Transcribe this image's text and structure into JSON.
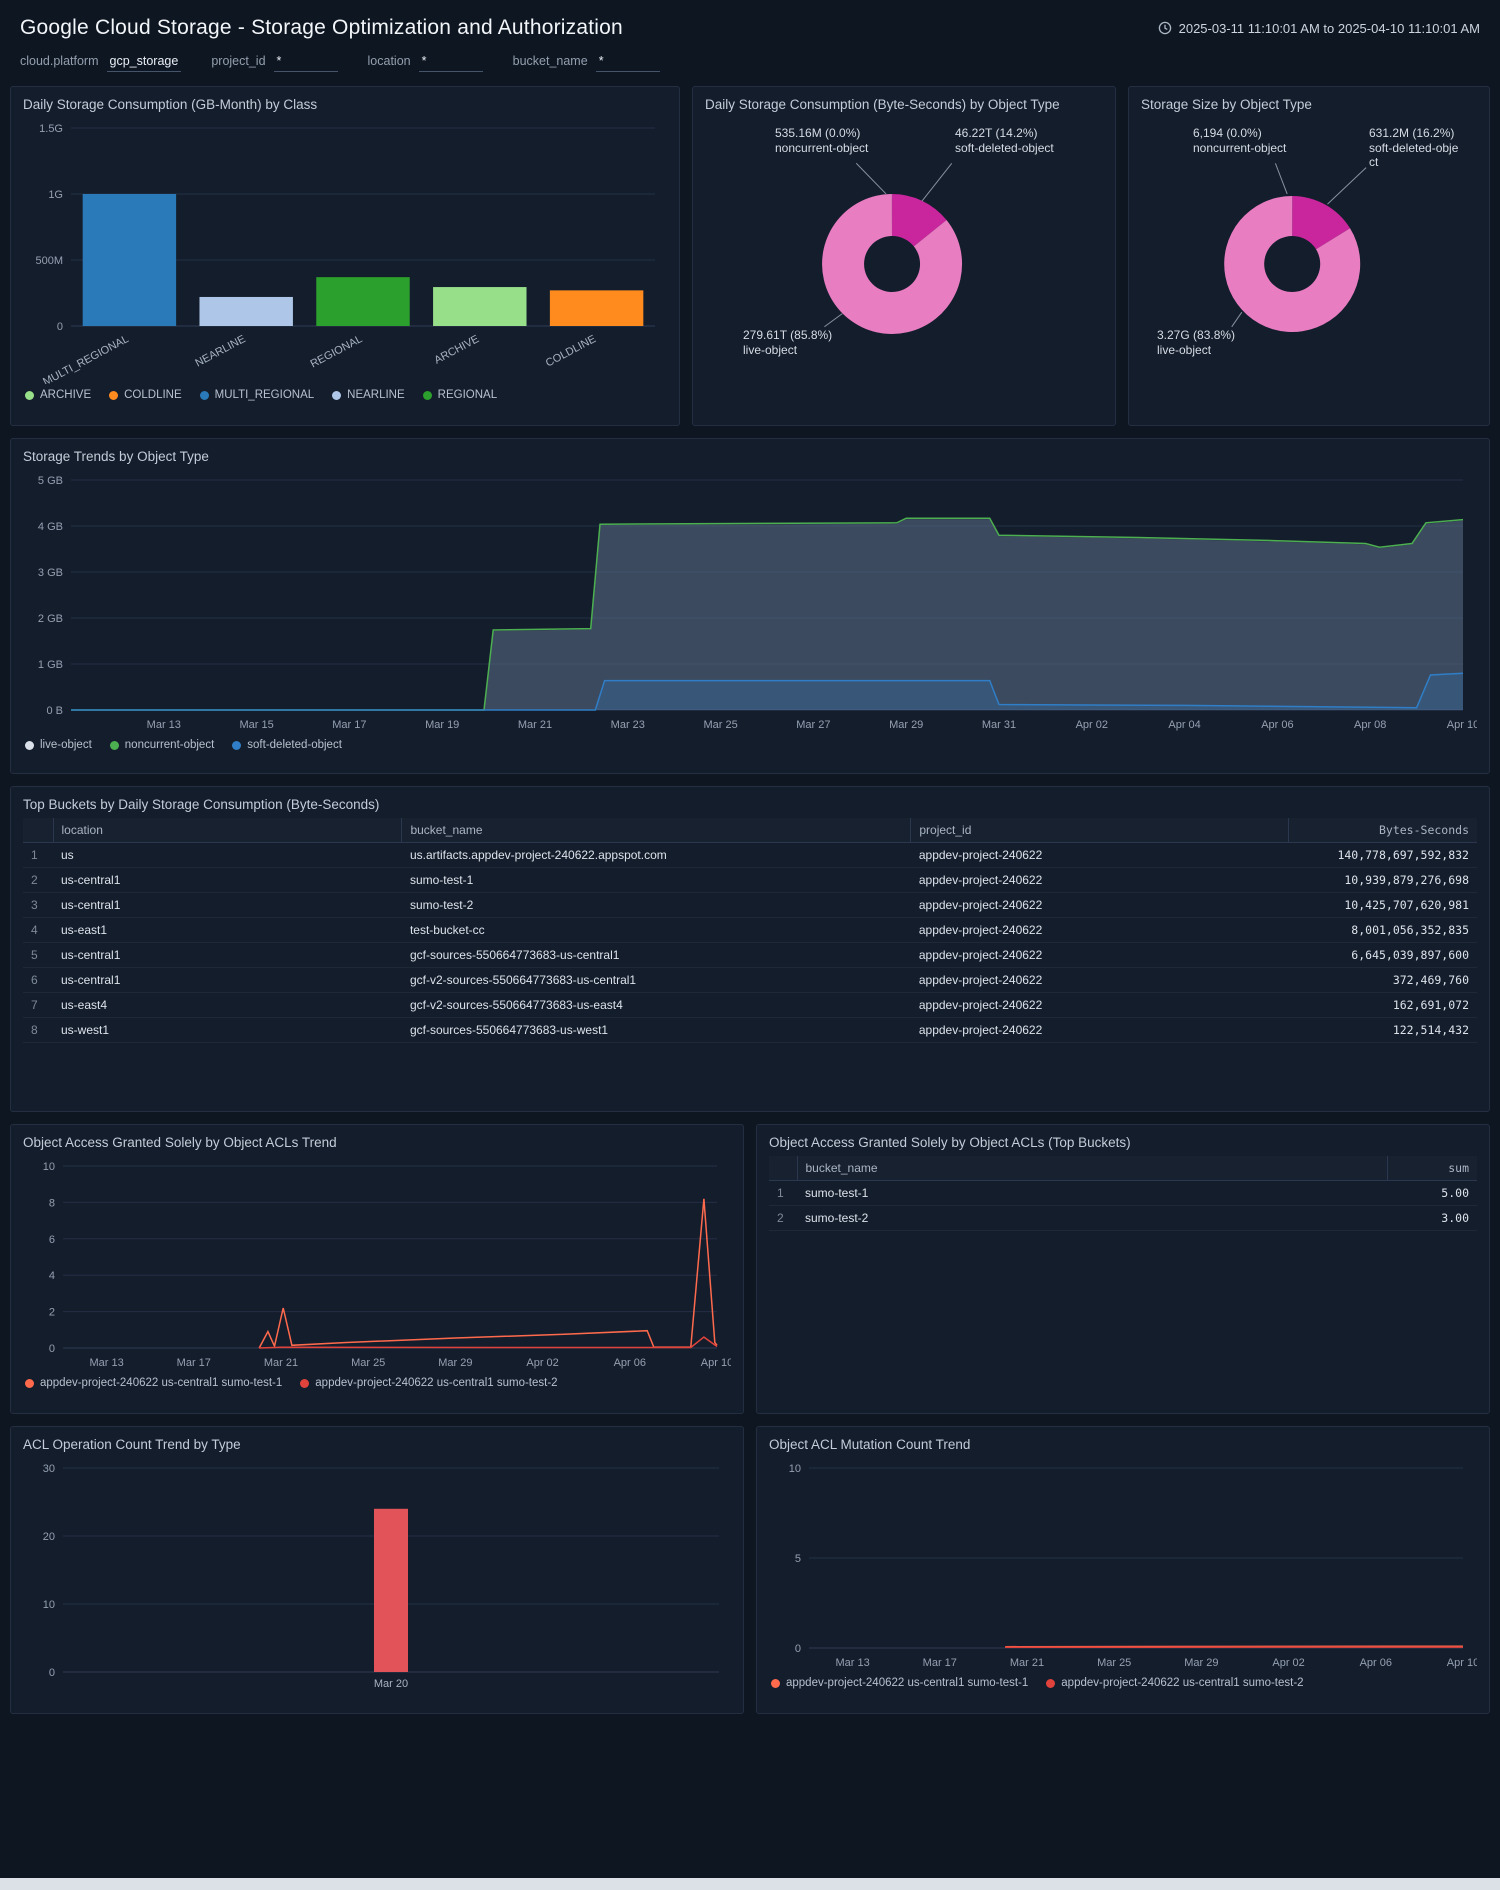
{
  "header": {
    "title": "Google Cloud Storage - Storage Optimization and Authorization",
    "time_range": "2025-03-11 11:10:01 AM to 2025-04-10 11:10:01 AM"
  },
  "filters": [
    {
      "label": "cloud.platform",
      "value": "gcp_storage"
    },
    {
      "label": "project_id",
      "value": "*"
    },
    {
      "label": "location",
      "value": "*"
    },
    {
      "label": "bucket_name",
      "value": "*"
    }
  ],
  "panels": {
    "class_bar": {
      "title": "Daily Storage Consumption (GB-Month) by Class"
    },
    "bytes_donut": {
      "title": "Daily Storage Consumption (Byte-Seconds) by Object Type"
    },
    "size_donut": {
      "title": "Storage Size by Object Type"
    },
    "trends": {
      "title": "Storage Trends by Object Type"
    },
    "top_buckets": {
      "title": "Top Buckets by Daily Storage Consumption (Byte-Seconds)"
    },
    "acl_trend": {
      "title": "Object Access Granted Solely by Object ACLs Trend"
    },
    "acl_table": {
      "title": "Object Access Granted Solely by Object ACLs (Top Buckets)"
    },
    "acl_bar": {
      "title": "ACL Operation Count Trend by Type"
    },
    "mutation_trend": {
      "title": "Object ACL Mutation Count Trend"
    }
  },
  "tables": {
    "top_buckets": {
      "columns": [
        "location",
        "bucket_name",
        "project_id",
        "Bytes-Seconds"
      ],
      "rows": [
        [
          "us",
          "us.artifacts.appdev-project-240622.appspot.com",
          "appdev-project-240622",
          "140,778,697,592,832"
        ],
        [
          "us-central1",
          "sumo-test-1",
          "appdev-project-240622",
          "10,939,879,276,698"
        ],
        [
          "us-central1",
          "sumo-test-2",
          "appdev-project-240622",
          "10,425,707,620,981"
        ],
        [
          "us-east1",
          "test-bucket-cc",
          "appdev-project-240622",
          "8,001,056,352,835"
        ],
        [
          "us-central1",
          "gcf-sources-550664773683-us-central1",
          "appdev-project-240622",
          "6,645,039,897,600"
        ],
        [
          "us-central1",
          "gcf-v2-sources-550664773683-us-central1",
          "appdev-project-240622",
          "372,469,760"
        ],
        [
          "us-east4",
          "gcf-v2-sources-550664773683-us-east4",
          "appdev-project-240622",
          "162,691,072"
        ],
        [
          "us-west1",
          "gcf-sources-550664773683-us-west1",
          "appdev-project-240622",
          "122,514,432"
        ]
      ]
    },
    "acl_top": {
      "columns": [
        "bucket_name",
        "sum"
      ],
      "rows": [
        [
          "sumo-test-1",
          "5.00"
        ],
        [
          "sumo-test-2",
          "3.00"
        ]
      ]
    }
  },
  "chart_data": [
    {
      "id": "class_bar",
      "type": "bar",
      "title": "Daily Storage Consumption (GB-Month) by Class",
      "categories": [
        "MULTI_REGIONAL",
        "NEARLINE",
        "REGIONAL",
        "ARCHIVE",
        "COLDLINE"
      ],
      "values": [
        1000000000,
        220000000,
        370000000,
        295000000,
        270000000
      ],
      "colors": [
        "#2a7ab9",
        "#aec7e8",
        "#2ca02c",
        "#98df8a",
        "#ff8b1e"
      ],
      "ylim": [
        0,
        1500000000
      ],
      "yticks": [
        {
          "v": 0,
          "l": "0"
        },
        {
          "v": 500000000,
          "l": "500M"
        },
        {
          "v": 1000000000,
          "l": "1G"
        },
        {
          "v": 1500000000,
          "l": "1.5G"
        }
      ],
      "rotate": -28,
      "ml": 48,
      "mb": 58,
      "legend": [
        {
          "label": "ARCHIVE",
          "color": "#98df8a"
        },
        {
          "label": "COLDLINE",
          "color": "#ff8b1e"
        },
        {
          "label": "MULTI_REGIONAL",
          "color": "#2a7ab9"
        },
        {
          "label": "NEARLINE",
          "color": "#aec7e8"
        },
        {
          "label": "REGIONAL",
          "color": "#2ca02c"
        }
      ]
    },
    {
      "id": "bytes_donut",
      "type": "donut",
      "title": "Daily Storage Consumption (Byte-Seconds) by Object Type",
      "cx": 0.47,
      "cy": 0.5,
      "r": 70,
      "ir": 28,
      "slices": [
        {
          "label": "soft-deleted-object",
          "value": 14.2,
          "color": "#c9259c"
        },
        {
          "label": "live-object",
          "value": 85.8,
          "color": "#e87dc2"
        },
        {
          "label": "noncurrent-object",
          "value": 0.05,
          "color": "#f0a8d8"
        }
      ],
      "labels": [
        {
          "lines": [
            "535.16M (0.0%)",
            "noncurrent-object"
          ],
          "x": 70,
          "y": 8
        },
        {
          "lines": [
            "46.22T (14.2%)",
            "soft-deleted-object"
          ],
          "x": 250,
          "y": 8
        },
        {
          "lines": [
            "279.61T (85.8%)",
            "live-object"
          ],
          "x": 38,
          "y": 210
        }
      ],
      "leaders": [
        [
          0.38,
          0.155,
          0.455,
          0.26
        ],
        [
          0.62,
          0.155,
          0.545,
          0.285
        ],
        [
          0.3,
          0.715,
          0.345,
          0.67
        ]
      ]
    },
    {
      "id": "size_donut",
      "type": "donut",
      "title": "Storage Size by Object Type",
      "cx": 0.45,
      "cy": 0.5,
      "r": 68,
      "ir": 28,
      "slices": [
        {
          "label": "soft-deleted-object",
          "value": 16.2,
          "color": "#c9259c"
        },
        {
          "label": "live-object",
          "value": 83.8,
          "color": "#e87dc2"
        },
        {
          "label": "noncurrent-object",
          "value": 0.05,
          "color": "#f0a8d8"
        }
      ],
      "labels": [
        {
          "lines": [
            "6,194 (0.0%)",
            "noncurrent-object"
          ],
          "x": 52,
          "y": 8
        },
        {
          "lines": [
            "631.2M (16.2%)",
            "soft-deleted-obje",
            "ct"
          ],
          "x": 228,
          "y": 8
        },
        {
          "lines": [
            "3.27G (83.8%)",
            "live-object"
          ],
          "x": 16,
          "y": 210
        }
      ],
      "leaders": [
        [
          0.4,
          0.155,
          0.435,
          0.26
        ],
        [
          0.67,
          0.17,
          0.555,
          0.295
        ],
        [
          0.27,
          0.715,
          0.3,
          0.665
        ]
      ]
    },
    {
      "id": "trends",
      "type": "line",
      "title": "Storage Trends by Object Type",
      "xlim": [
        0,
        30
      ],
      "ylim": [
        0,
        5
      ],
      "ml": 48,
      "yticks": [
        {
          "v": 0,
          "l": "0 B"
        },
        {
          "v": 1,
          "l": "1 GB"
        },
        {
          "v": 2,
          "l": "2 GB"
        },
        {
          "v": 3,
          "l": "3 GB"
        },
        {
          "v": 4,
          "l": "4 GB"
        },
        {
          "v": 5,
          "l": "5 GB"
        }
      ],
      "xticks": [
        {
          "v": 2,
          "l": "Mar 13"
        },
        {
          "v": 4,
          "l": "Mar 15"
        },
        {
          "v": 6,
          "l": "Mar 17"
        },
        {
          "v": 8,
          "l": "Mar 19"
        },
        {
          "v": 10,
          "l": "Mar 21"
        },
        {
          "v": 12,
          "l": "Mar 23"
        },
        {
          "v": 14,
          "l": "Mar 25"
        },
        {
          "v": 16,
          "l": "Mar 27"
        },
        {
          "v": 18,
          "l": "Mar 29"
        },
        {
          "v": 20,
          "l": "Mar 31"
        },
        {
          "v": 22,
          "l": "Apr 02"
        },
        {
          "v": 24,
          "l": "Apr 04"
        },
        {
          "v": 26,
          "l": "Apr 06"
        },
        {
          "v": 28,
          "l": "Apr 08"
        },
        {
          "v": 30,
          "l": "Apr 10"
        }
      ],
      "series": [
        {
          "name": "live-object",
          "color": "#8fa0b0",
          "width": 0,
          "fill": "#62788f",
          "fillOpacity": 0.5,
          "points": [
            [
              0,
              0
            ],
            [
              8.9,
              0
            ],
            [
              9.1,
              1.72
            ],
            [
              11.2,
              1.75
            ],
            [
              11.4,
              4.02
            ],
            [
              17.8,
              4.05
            ],
            [
              18.0,
              4.15
            ],
            [
              19.8,
              4.15
            ],
            [
              20.0,
              3.78
            ],
            [
              23,
              3.73
            ],
            [
              26,
              3.66
            ],
            [
              27.9,
              3.6
            ],
            [
              28.2,
              3.52
            ],
            [
              28.9,
              3.6
            ],
            [
              29.2,
              4.05
            ],
            [
              30,
              4.12
            ]
          ]
        },
        {
          "name": "noncurrent-object",
          "color": "#4caf50",
          "width": 1.5,
          "points": [
            [
              0,
              0
            ],
            [
              8.9,
              0
            ],
            [
              9.1,
              1.74
            ],
            [
              11.2,
              1.77
            ],
            [
              11.4,
              4.04
            ],
            [
              17.8,
              4.07
            ],
            [
              18.0,
              4.17
            ],
            [
              19.8,
              4.17
            ],
            [
              20.0,
              3.8
            ],
            [
              23,
              3.75
            ],
            [
              26,
              3.68
            ],
            [
              27.9,
              3.62
            ],
            [
              28.2,
              3.54
            ],
            [
              28.9,
              3.62
            ],
            [
              29.2,
              4.07
            ],
            [
              30,
              4.14
            ]
          ]
        },
        {
          "name": "soft-deleted-object",
          "color": "#2f7ec7",
          "width": 1.5,
          "fill": "#2f7ec7",
          "fillOpacity": 0.25,
          "points": [
            [
              0,
              0
            ],
            [
              11.3,
              0
            ],
            [
              11.5,
              0.64
            ],
            [
              19.8,
              0.64
            ],
            [
              20.0,
              0.12
            ],
            [
              24,
              0.1
            ],
            [
              28,
              0.06
            ],
            [
              29.0,
              0.05
            ],
            [
              29.3,
              0.76
            ],
            [
              30,
              0.8
            ]
          ]
        }
      ],
      "legend": [
        {
          "label": "live-object",
          "color": "#d9e0e9"
        },
        {
          "label": "noncurrent-object",
          "color": "#4caf50"
        },
        {
          "label": "soft-deleted-object",
          "color": "#2f7ec7"
        }
      ]
    },
    {
      "id": "acl_trend",
      "type": "line",
      "title": "Object Access Granted Solely by Object ACLs Trend",
      "xlim": [
        0,
        30
      ],
      "ylim": [
        0,
        10
      ],
      "ml": 40,
      "yticks": [
        {
          "v": 0,
          "l": "0"
        },
        {
          "v": 2,
          "l": "2"
        },
        {
          "v": 4,
          "l": "4"
        },
        {
          "v": 6,
          "l": "6"
        },
        {
          "v": 8,
          "l": "8"
        },
        {
          "v": 10,
          "l": "10"
        }
      ],
      "xticks": [
        {
          "v": 2,
          "l": "Mar 13"
        },
        {
          "v": 6,
          "l": "Mar 17"
        },
        {
          "v": 10,
          "l": "Mar 21"
        },
        {
          "v": 14,
          "l": "Mar 25"
        },
        {
          "v": 18,
          "l": "Mar 29"
        },
        {
          "v": 22,
          "l": "Apr 02"
        },
        {
          "v": 26,
          "l": "Apr 06"
        },
        {
          "v": 30,
          "l": "Apr 10"
        }
      ],
      "series": [
        {
          "name": "appdev-project-240622 us-central1 sumo-test-1",
          "color": "#ff6a4d",
          "width": 1.5,
          "points": [
            [
              9,
              0
            ],
            [
              9.4,
              0.9
            ],
            [
              9.7,
              0.1
            ],
            [
              10.1,
              2.2
            ],
            [
              10.5,
              0.15
            ],
            [
              13,
              0.3
            ],
            [
              18,
              0.55
            ],
            [
              23,
              0.75
            ],
            [
              26.8,
              0.95
            ],
            [
              27.1,
              0.05
            ],
            [
              28.8,
              0.05
            ],
            [
              29.4,
              8.2
            ],
            [
              29.9,
              0.3
            ],
            [
              30,
              0.15
            ]
          ]
        },
        {
          "name": "appdev-project-240622 us-central1 sumo-test-2",
          "color": "#e0433c",
          "width": 1.5,
          "points": [
            [
              9,
              0
            ],
            [
              10,
              0.04
            ],
            [
              20,
              0.03
            ],
            [
              28.8,
              0.03
            ],
            [
              29.4,
              0.6
            ],
            [
              30,
              0.08
            ]
          ]
        }
      ],
      "legend": [
        {
          "label": "appdev-project-240622 us-central1 sumo-test-1",
          "color": "#ff6a4d"
        },
        {
          "label": "appdev-project-240622 us-central1 sumo-test-2",
          "color": "#e0433c"
        }
      ]
    },
    {
      "id": "acl_bar",
      "type": "bar",
      "title": "ACL Operation Count Trend by Type",
      "categories": [
        "Mar 20"
      ],
      "values": [
        24
      ],
      "colors": [
        "#e25359"
      ],
      "ylim": [
        0,
        30
      ],
      "yticks": [
        {
          "v": 0,
          "l": "0"
        },
        {
          "v": 10,
          "l": "10"
        },
        {
          "v": 20,
          "l": "20"
        },
        {
          "v": 30,
          "l": "30"
        }
      ],
      "ml": 40,
      "mb": 26,
      "barw": 34
    },
    {
      "id": "mutation_trend",
      "type": "line",
      "title": "Object ACL Mutation Count Trend",
      "xlim": [
        0,
        30
      ],
      "ylim": [
        0,
        10
      ],
      "ml": 40,
      "yticks": [
        {
          "v": 0,
          "l": "0"
        },
        {
          "v": 5,
          "l": "5"
        },
        {
          "v": 10,
          "l": "10"
        }
      ],
      "xticks": [
        {
          "v": 2,
          "l": "Mar 13"
        },
        {
          "v": 6,
          "l": "Mar 17"
        },
        {
          "v": 10,
          "l": "Mar 21"
        },
        {
          "v": 14,
          "l": "Mar 25"
        },
        {
          "v": 18,
          "l": "Mar 29"
        },
        {
          "v": 22,
          "l": "Apr 02"
        },
        {
          "v": 26,
          "l": "Apr 06"
        },
        {
          "v": 30,
          "l": "Apr 10"
        }
      ],
      "series": [
        {
          "name": "appdev-project-240622 us-central1 sumo-test-1",
          "color": "#ff6a4d",
          "width": 1.5,
          "points": [
            [
              9,
              0.07
            ],
            [
              30,
              0.1
            ]
          ]
        },
        {
          "name": "appdev-project-240622 us-central1 sumo-test-2",
          "color": "#e0433c",
          "width": 1.5,
          "points": [
            [
              9,
              0.04
            ],
            [
              30,
              0.05
            ]
          ]
        }
      ],
      "legend": [
        {
          "label": "appdev-project-240622 us-central1 sumo-test-1",
          "color": "#ff6a4d"
        },
        {
          "label": "appdev-project-240622 us-central1 sumo-test-2",
          "color": "#e0433c"
        }
      ]
    }
  ]
}
